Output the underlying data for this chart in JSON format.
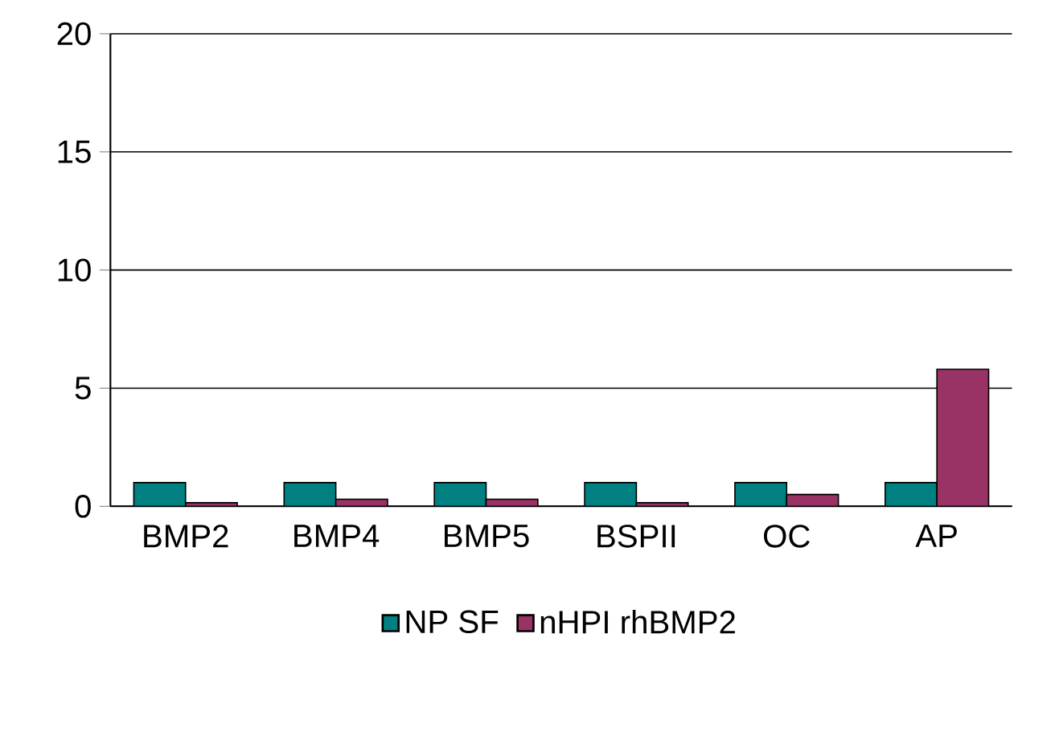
{
  "chart_data": {
    "type": "bar",
    "categories": [
      "BMP2",
      "BMP4",
      "BMP5",
      "BSPII",
      "OC",
      "AP"
    ],
    "series": [
      {
        "name": "NP SF",
        "color": "#008080",
        "values": [
          1,
          1,
          1,
          1,
          1,
          1
        ]
      },
      {
        "name": "nHPI rhBMP2",
        "color": "#993366",
        "values": [
          0.15,
          0.3,
          0.3,
          0.15,
          0.5,
          5.8
        ]
      }
    ],
    "ylim": [
      0,
      20
    ],
    "yticks": [
      0,
      5,
      10,
      15,
      20
    ],
    "grid": "y",
    "legend": "bottom"
  }
}
